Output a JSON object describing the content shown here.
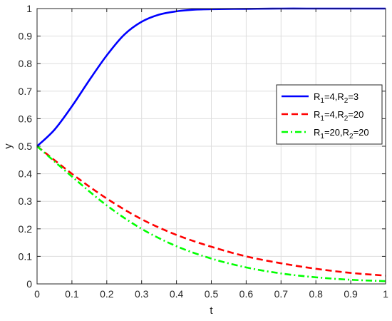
{
  "chart_data": {
    "type": "line",
    "xlabel": "t",
    "ylabel": "y",
    "xlim": [
      0,
      1
    ],
    "ylim": [
      0,
      1
    ],
    "grid": true,
    "legend_position": "right",
    "xticks": [
      0,
      0.1,
      0.2,
      0.3,
      0.4,
      0.5,
      0.6,
      0.7,
      0.8,
      0.9,
      1
    ],
    "xtick_labels": [
      "0",
      "0.1",
      "0.2",
      "0.3",
      "0.4",
      "0.5",
      "0.6",
      "0.7",
      "0.8",
      "0.9",
      "1"
    ],
    "yticks": [
      0,
      0.1,
      0.2,
      0.3,
      0.4,
      0.5,
      0.6,
      0.7,
      0.8,
      0.9,
      1
    ],
    "ytick_labels": [
      "0",
      "0.1",
      "0.2",
      "0.3",
      "0.4",
      "0.5",
      "0.6",
      "0.7",
      "0.8",
      "0.9",
      "1"
    ],
    "series": [
      {
        "name": "R1=4,R2=3",
        "legend": {
          "a": "R",
          "a_sub": "1",
          "b": "=4,R",
          "b_sub": "2",
          "c": "=3"
        },
        "color": "#0000ff",
        "style": "solid",
        "x": [
          0,
          0.05,
          0.1,
          0.15,
          0.2,
          0.25,
          0.3,
          0.35,
          0.4,
          0.45,
          0.5,
          0.6,
          0.7,
          0.8,
          0.9,
          1
        ],
        "y": [
          0.5,
          0.56,
          0.645,
          0.74,
          0.83,
          0.905,
          0.952,
          0.978,
          0.99,
          0.996,
          0.998,
          0.999,
          1.0,
          1.0,
          1.0,
          1.0
        ]
      },
      {
        "name": "R1=4,R2=20",
        "legend": {
          "a": "R",
          "a_sub": "1",
          "b": "=4,R",
          "b_sub": "2",
          "c": "=20"
        },
        "color": "#ff0000",
        "style": "dashed",
        "x": [
          0,
          0.1,
          0.2,
          0.3,
          0.4,
          0.5,
          0.6,
          0.7,
          0.8,
          0.9,
          1
        ],
        "y": [
          0.5,
          0.4,
          0.31,
          0.235,
          0.178,
          0.135,
          0.1,
          0.075,
          0.055,
          0.04,
          0.03
        ]
      },
      {
        "name": "R1=20,R2=20",
        "legend": {
          "a": "R",
          "a_sub": "1",
          "b": "=20,R",
          "b_sub": "2",
          "c": "=20"
        },
        "color": "#00ff00",
        "style": "dashdot",
        "x": [
          0,
          0.1,
          0.2,
          0.3,
          0.4,
          0.5,
          0.6,
          0.7,
          0.8,
          0.9,
          1
        ],
        "y": [
          0.5,
          0.39,
          0.285,
          0.2,
          0.137,
          0.092,
          0.06,
          0.038,
          0.024,
          0.015,
          0.01
        ]
      }
    ]
  }
}
